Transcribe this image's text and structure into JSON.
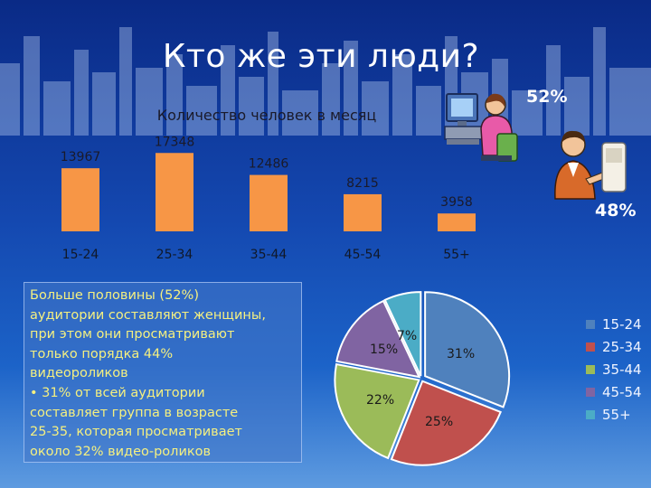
{
  "slide": {
    "title": "Кто же эти люди?"
  },
  "gender": {
    "women_pct": "52%",
    "men_pct": "48%"
  },
  "text_block": {
    "line1": "Больше половины (52%)",
    "line2": "аудитории составляют женщины,",
    "line3": "при этом они просматривают",
    "line4": "только порядка 44%",
    "line5": "видеороликов",
    "line6": "• 31% от всей аудитории",
    "line7": "составляет группа в возрасте",
    "line8": "25-35, которая просматривает",
    "line9": "около 32% видео-роликов"
  },
  "colors": {
    "bar": "#f79646",
    "pie": [
      "#4f81bd",
      "#c0504d",
      "#9bbb59",
      "#8064a2",
      "#4bacc6"
    ]
  },
  "icons": [
    "woman-at-computer-icon",
    "man-at-computer-icon"
  ],
  "chart_data": [
    {
      "type": "bar",
      "title": "Количество человек в месяц",
      "categories": [
        "15-24",
        "25-34",
        "35-44",
        "45-54",
        "55+"
      ],
      "values": [
        13967,
        17348,
        12486,
        8215,
        3958
      ],
      "value_labels": [
        "13967",
        "17348",
        "12486",
        "8215",
        "3958"
      ],
      "ylim": [
        0,
        18000
      ],
      "grid": false,
      "legend": "none"
    },
    {
      "type": "pie",
      "categories": [
        "15-24",
        "25-34",
        "35-44",
        "45-54",
        "55+"
      ],
      "values": [
        31,
        25,
        22,
        15,
        7
      ],
      "value_labels": [
        "31%",
        "25%",
        "22%",
        "15%",
        "7%"
      ],
      "legend": "right"
    }
  ]
}
